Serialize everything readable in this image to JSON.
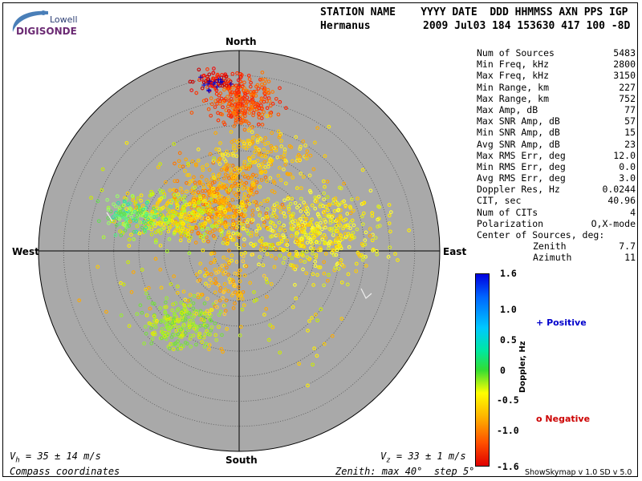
{
  "logo": {
    "top": "Lowell",
    "bottom": "DIGISONDE"
  },
  "header": {
    "columns_line": "STATION NAME    YYYY DATE  DDD HHMMSS AXN PPS IGP",
    "station": "Hermanus",
    "values_line": "2009 Jul03 184 153630 417 100 -8D"
  },
  "compass": {
    "north": "North",
    "south": "South",
    "east": "East",
    "west": "West"
  },
  "stats": [
    {
      "label": "Num of Sources",
      "value": "5483"
    },
    {
      "label": "Min Freq, kHz",
      "value": "2800"
    },
    {
      "label": "Max Freq, kHz",
      "value": "3150"
    },
    {
      "label": "Min Range, km",
      "value": "227"
    },
    {
      "label": "Max Range, km",
      "value": "752"
    },
    {
      "label": "Max Amp, dB",
      "value": "77"
    },
    {
      "label": "Max SNR Amp, dB",
      "value": "57"
    },
    {
      "label": "Min SNR Amp, dB",
      "value": "15"
    },
    {
      "label": "Avg SNR Amp, dB",
      "value": "23"
    },
    {
      "label": "Max RMS Err, deg",
      "value": "12.0"
    },
    {
      "label": "Min RMS Err, deg",
      "value": "0.0"
    },
    {
      "label": "Avg RMS Err, deg",
      "value": "3.0"
    },
    {
      "label": "Doppler Res, Hz",
      "value": "0.0244"
    },
    {
      "label": "CIT, sec",
      "value": "40.96"
    },
    {
      "label": "Num of CITs",
      "value": "4"
    },
    {
      "label": "Polarization",
      "value": "O,X-mode"
    }
  ],
  "center": {
    "title": "Center of Sources, deg:",
    "zenith_label": "Zenith",
    "zenith_value": "7.7",
    "azimuth_label": "Azimuth",
    "azimuth_value": "11"
  },
  "colorbar": {
    "axis_label": "Doppler, Hz",
    "ticks": [
      "1.6",
      "1.0",
      "0.5",
      "0",
      "-0.5",
      "-1.0",
      "-1.6"
    ],
    "min": -1.6,
    "max": 1.6
  },
  "legend": {
    "positive": "Positive",
    "negative": "Negative",
    "positive_color": "#0000cc",
    "negative_color": "#cc0000"
  },
  "footer": {
    "vh_sym": "V",
    "vh_sub": "h",
    "vh_text": " = 35 ± 14 m/s",
    "vz_sym": "V",
    "vz_sub": "z",
    "vz_text": " = 33 ± 1 m/s",
    "coords": "Compass coordinates",
    "zenith_info": "Zenith: max 40°  step 5°",
    "version": "ShowSkymap v 1.0   SD v 5.0"
  }
}
